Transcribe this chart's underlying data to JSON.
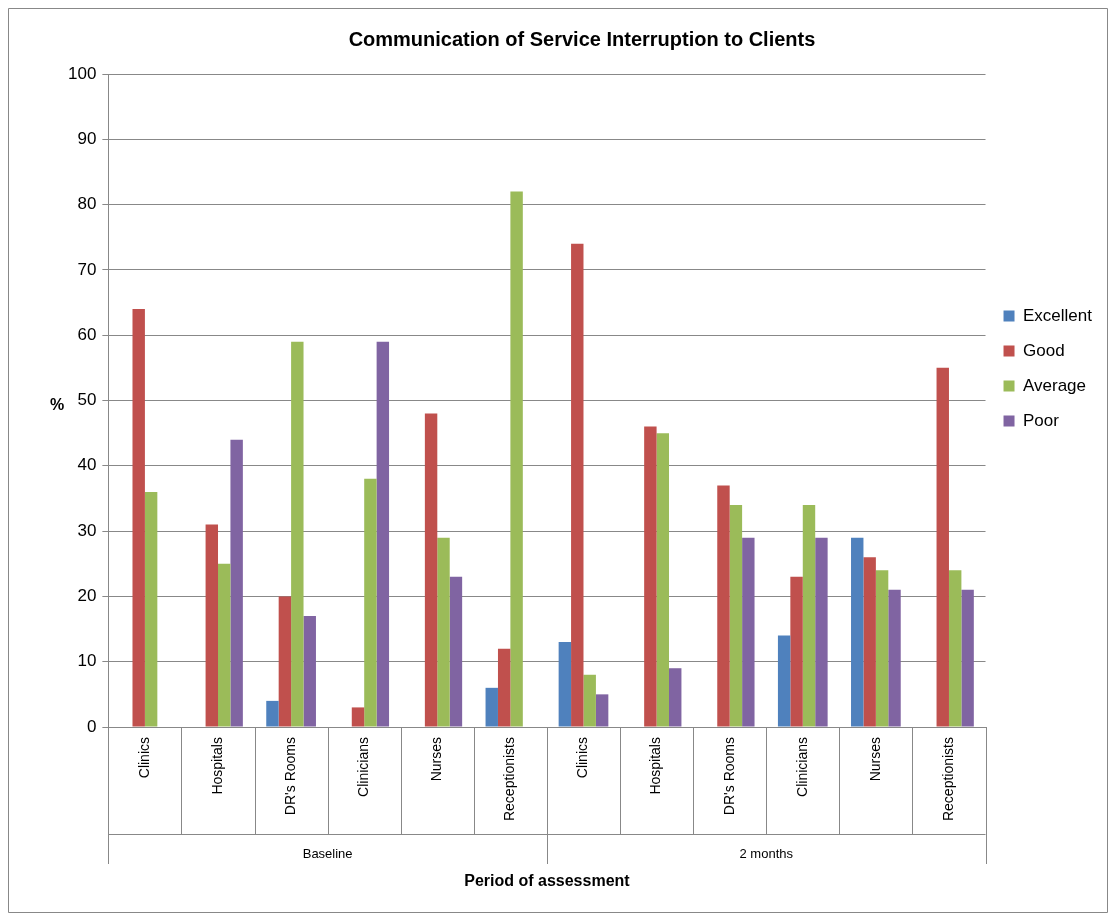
{
  "chart_data": {
    "type": "bar",
    "title": "Communication of Service Interruption to Clients",
    "xlabel": "Period of assessment",
    "ylabel": "%",
    "categories": [
      "Clinics",
      "Hospitals",
      "DR's Rooms",
      "Clinicians",
      "Nurses",
      "Receptionists",
      "Clinics",
      "Hospitals",
      "DR's Rooms",
      "Clinicians",
      "Nurses",
      "Receptionists"
    ],
    "annotations": [
      "Baseline",
      "2 months"
    ],
    "series": [
      {
        "name": "Excellent",
        "color": "#4f81bd",
        "values": [
          0,
          0,
          4,
          0,
          0,
          6,
          13,
          0,
          0,
          14,
          29,
          0
        ]
      },
      {
        "name": "Good",
        "color": "#c0504d",
        "values": [
          64,
          31,
          20,
          3,
          48,
          12,
          74,
          46,
          37,
          23,
          26,
          55
        ]
      },
      {
        "name": "Average",
        "color": "#9bbb59",
        "values": [
          36,
          25,
          59,
          38,
          29,
          82,
          8,
          45,
          34,
          34,
          24,
          24
        ]
      },
      {
        "name": "Poor",
        "color": "#8064a2",
        "values": [
          0,
          44,
          17,
          59,
          23,
          0,
          5,
          9,
          29,
          29,
          21,
          21
        ]
      }
    ],
    "ylim": [
      0,
      100
    ],
    "yticks": [
      0,
      10,
      20,
      30,
      40,
      50,
      60,
      70,
      80,
      90,
      100
    ],
    "grid": "y",
    "legend": "right"
  }
}
